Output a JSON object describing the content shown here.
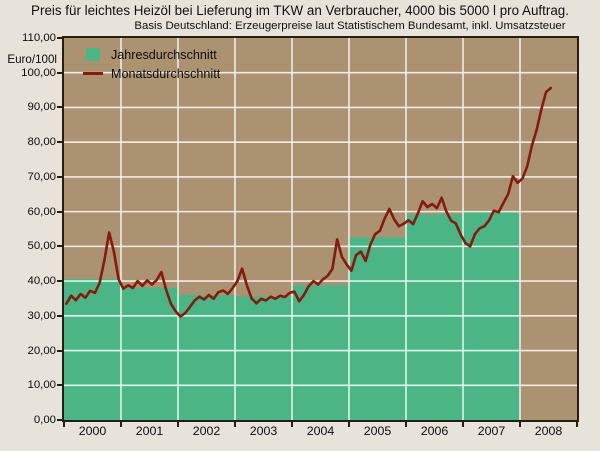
{
  "header": {
    "title": "Preis für leichtes Heizöl bei Lieferung im TKW an Verbraucher, 4000 bis 5000 l pro Auftrag.",
    "subtitle": "Basis Deutschland: Erzeugerpreise laut Statistischem Bundesamt, inkl. Umsatzsteuer"
  },
  "colors": {
    "page_background": "#e7e3da",
    "plot_background": "#ab9372",
    "bar_green": "#4cb585",
    "line_maroon": "#851a0f",
    "grid_white": "rgba(255,255,255,0.82)",
    "frame_dark": "#241e13",
    "text": "#101010"
  },
  "chart_data": {
    "type": "combo",
    "title": "Preis für leichtes Heizöl bei Lieferung im TKW an Verbraucher, 4000 bis 5000 l pro Auftrag.",
    "subtitle": "Basis Deutschland: Erzeugerpreise laut Statistischem Bundesamt, inkl. Umsatzsteuer",
    "xlabel": "",
    "ylabel": "Euro/100l",
    "ylim": [
      0,
      110
    ],
    "ytick_step": 10,
    "ytick_labels": [
      "0,00",
      "10,00",
      "20,00",
      "30,00",
      "40,00",
      "50,00",
      "60,00",
      "70,00",
      "80,00",
      "90,00",
      "100,00",
      "110,00"
    ],
    "categories": [
      "2000",
      "2001",
      "2002",
      "2003",
      "2004",
      "2005",
      "2006",
      "2007",
      "2008"
    ],
    "grid": true,
    "legend_position": "top-left-inside",
    "series": [
      {
        "name": "Jahresdurchschnitt",
        "type": "bar",
        "color": "#4cb585",
        "categories": [
          "2000",
          "2001",
          "2002",
          "2003",
          "2004",
          "2005",
          "2006",
          "2007"
        ],
        "values": [
          40.6,
          38.1,
          36.0,
          35.6,
          38.8,
          52.6,
          59.2,
          59.8
        ]
      },
      {
        "name": "Monatsdurchschnitt",
        "type": "line",
        "color": "#851a0f",
        "x_unit": "month",
        "monthly": [
          {
            "year": "2000",
            "values": [
              33.5,
              35.8,
              34.5,
              36.3,
              35.2,
              37.2,
              36.6,
              39.5,
              46.0,
              54.0,
              48.5,
              40.5
            ]
          },
          {
            "year": "2001",
            "values": [
              37.8,
              38.8,
              38.0,
              40.0,
              38.6,
              40.2,
              39.0,
              40.3,
              42.6,
              37.5,
              33.5,
              31.3
            ]
          },
          {
            "year": "2002",
            "values": [
              29.8,
              30.8,
              32.5,
              34.4,
              35.5,
              34.7,
              36.0,
              34.9,
              36.8,
              37.3,
              36.3,
              38.0
            ]
          },
          {
            "year": "2003",
            "values": [
              40.0,
              43.6,
              38.8,
              35.0,
              33.6,
              34.9,
              34.4,
              35.5,
              34.9,
              35.8,
              35.4,
              36.6
            ]
          },
          {
            "year": "2004",
            "values": [
              37.0,
              34.2,
              36.0,
              38.5,
              40.0,
              39.0,
              40.5,
              41.5,
              43.5,
              52.0,
              47.0,
              44.8
            ]
          },
          {
            "year": "2005",
            "values": [
              43.0,
              47.5,
              48.5,
              45.8,
              50.5,
              53.5,
              54.5,
              58.0,
              60.8,
              57.8,
              55.8,
              56.5
            ]
          },
          {
            "year": "2006",
            "values": [
              57.5,
              56.4,
              59.5,
              63.0,
              61.3,
              62.2,
              61.0,
              64.0,
              60.0,
              57.4,
              56.6,
              53.4
            ]
          },
          {
            "year": "2007",
            "values": [
              51.0,
              50.0,
              53.5,
              55.2,
              55.8,
              57.5,
              60.3,
              59.8,
              62.5,
              65.0,
              70.2,
              68.3
            ]
          },
          {
            "year": "2008",
            "values": [
              69.5,
              73.0,
              79.0,
              83.5,
              89.5,
              94.5,
              95.6
            ]
          }
        ]
      }
    ]
  }
}
